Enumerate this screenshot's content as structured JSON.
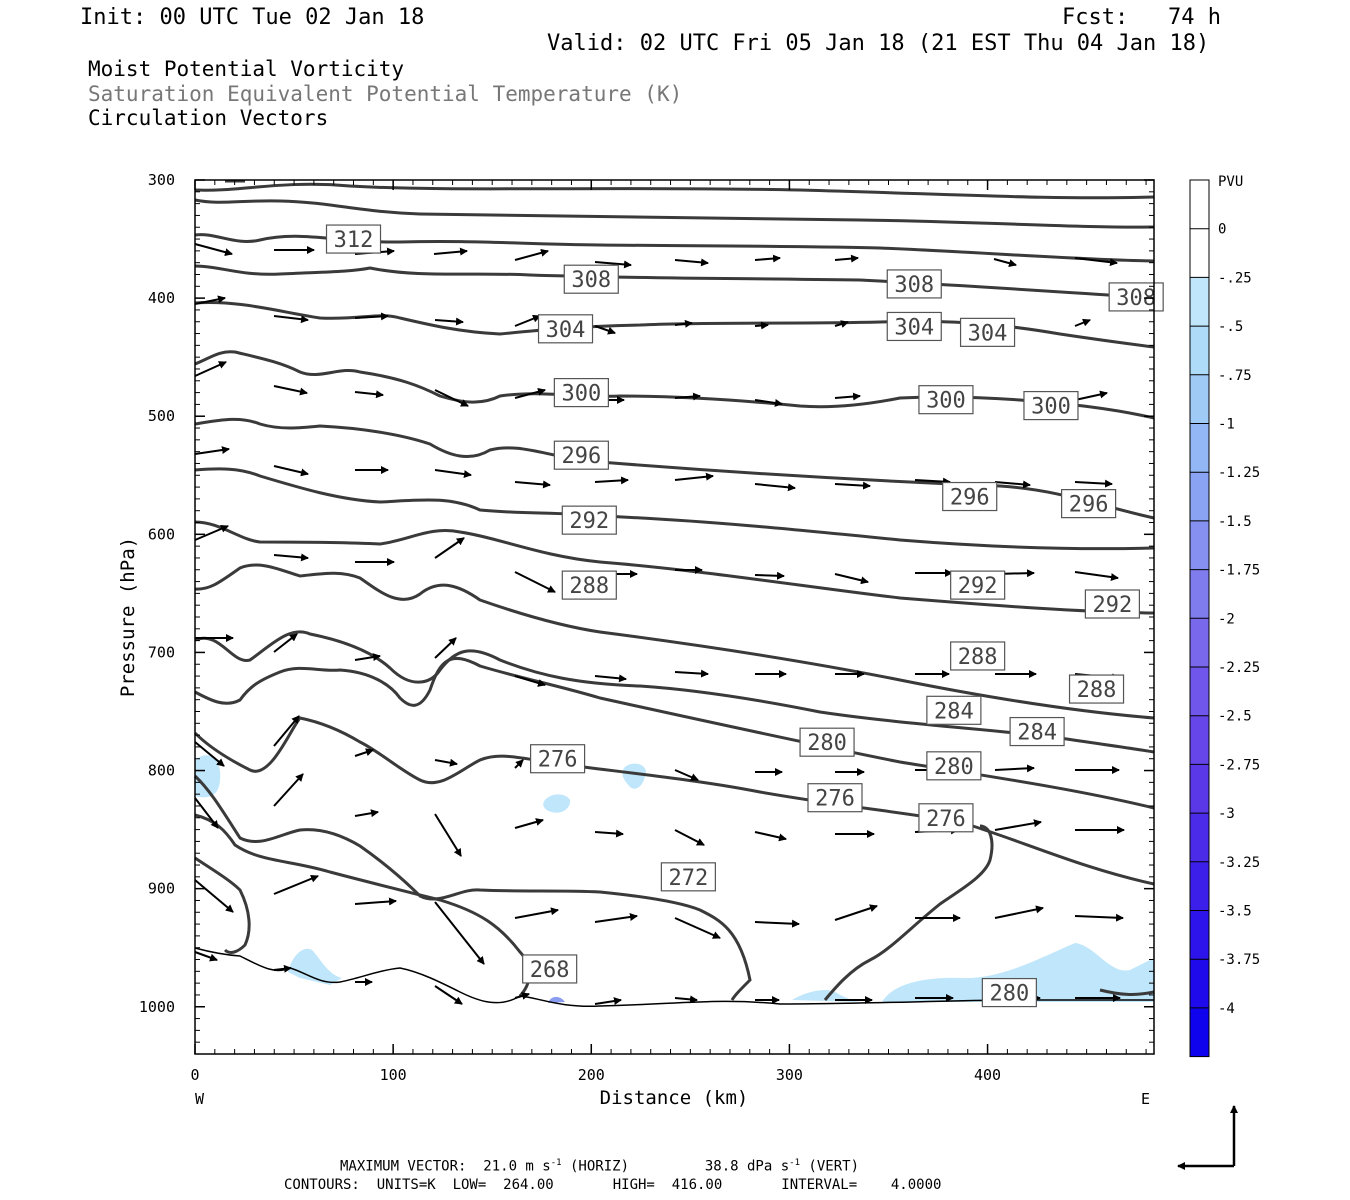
{
  "header": {
    "init": "Init: 00 UTC Tue 02 Jan 18",
    "fcst": "Fcst:   74 h",
    "valid": "Valid: 02 UTC Fri 05 Jan 18 (21 EST Thu 04 Jan 18)"
  },
  "fields": [
    "Moist Potential Vorticity",
    "Saturation Equivalent Potential Temperature (K)",
    "Circulation Vectors"
  ],
  "footer": {
    "max_vector_prefix": "MAXIMUM VECTOR:  21.0 m s",
    "max_vector_h_exp": "-1",
    "max_vector_h_suffix": " (HORIZ)",
    "max_vector_v_prefix": "38.8 dPa s",
    "max_vector_v_exp": "-1",
    "max_vector_v_suffix": " (VERT)",
    "contours": "CONTOURS:  UNITS=K  LOW=  264.00       HIGH=  416.00       INTERVAL=    4.0000"
  },
  "colors": {
    "contour": "#3a3a3a",
    "vector": "#000000",
    "pv_fill": "#bfe6fa"
  },
  "chart_data": {
    "type": "contour",
    "xlabel": "Distance (km)",
    "ylabel": "Pressure (hPa)",
    "x_ticks": [
      0,
      100,
      200,
      300,
      400
    ],
    "y_ticks": [
      300,
      400,
      500,
      600,
      700,
      800,
      900,
      1000
    ],
    "xlim": [
      0,
      484
    ],
    "ylim": [
      300,
      1040
    ],
    "x_left_label": "W",
    "x_right_label": "E",
    "colorbar": {
      "unit": "PVU",
      "labels": [
        "0",
        "-.25",
        "-.5",
        "-.75",
        "-1",
        "-1.25",
        "-1.5",
        "-1.75",
        "-2",
        "-2.25",
        "-2.5",
        "-2.75",
        "-3",
        "-3.25",
        "-3.5",
        "-3.75",
        "-4"
      ],
      "colors": [
        "#ffffff",
        "#bfe6fa",
        "#aedcf8",
        "#9fcaf6",
        "#93b7f4",
        "#8aa3f2",
        "#8590f0",
        "#7f7cee",
        "#7968ec",
        "#7056ea",
        "#6646e8",
        "#5a38e8",
        "#4b2ae8",
        "#3c1fe9",
        "#2d14ea",
        "#1e0aeb",
        "#0f03ee"
      ]
    },
    "contour_labels": [
      {
        "text": "312",
        "x": 80,
        "p": 350
      },
      {
        "text": "308",
        "x": 200,
        "p": 384
      },
      {
        "text": "308",
        "x": 363,
        "p": 388
      },
      {
        "text": "308",
        "x": 475,
        "p": 399
      },
      {
        "text": "304",
        "x": 187,
        "p": 426
      },
      {
        "text": "304",
        "x": 363,
        "p": 424
      },
      {
        "text": "304",
        "x": 400,
        "p": 429
      },
      {
        "text": "300",
        "x": 195,
        "p": 480
      },
      {
        "text": "300",
        "x": 379,
        "p": 486
      },
      {
        "text": "300",
        "x": 432,
        "p": 491
      },
      {
        "text": "296",
        "x": 195,
        "p": 533
      },
      {
        "text": "296",
        "x": 391,
        "p": 568
      },
      {
        "text": "296",
        "x": 451,
        "p": 574
      },
      {
        "text": "292",
        "x": 199,
        "p": 588
      },
      {
        "text": "292",
        "x": 395,
        "p": 643
      },
      {
        "text": "292",
        "x": 463,
        "p": 659
      },
      {
        "text": "288",
        "x": 199,
        "p": 643
      },
      {
        "text": "288",
        "x": 395,
        "p": 703
      },
      {
        "text": "288",
        "x": 455,
        "p": 731
      },
      {
        "text": "284",
        "x": 383,
        "p": 749
      },
      {
        "text": "284",
        "x": 425,
        "p": 767
      },
      {
        "text": "280",
        "x": 319,
        "p": 776
      },
      {
        "text": "280",
        "x": 383,
        "p": 796
      },
      {
        "text": "276",
        "x": 183,
        "p": 790
      },
      {
        "text": "276",
        "x": 323,
        "p": 823
      },
      {
        "text": "276",
        "x": 379,
        "p": 840
      },
      {
        "text": "272",
        "x": 249,
        "p": 890
      },
      {
        "text": "268",
        "x": 179,
        "p": 968
      },
      {
        "text": "280",
        "x": 411,
        "p": 988
      }
    ]
  }
}
